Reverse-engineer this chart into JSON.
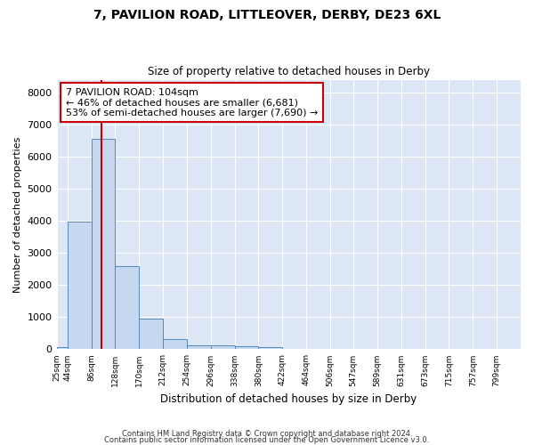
{
  "title": "7, PAVILION ROAD, LITTLEOVER, DERBY, DE23 6XL",
  "subtitle": "Size of property relative to detached houses in Derby",
  "xlabel": "Distribution of detached houses by size in Derby",
  "ylabel": "Number of detached properties",
  "footer_line1": "Contains HM Land Registry data © Crown copyright and database right 2024.",
  "footer_line2": "Contains public sector information licensed under the Open Government Licence v3.0.",
  "bar_color": "#c5d8f0",
  "bar_edge_color": "#5588bb",
  "background_color": "#dce6f5",
  "grid_color": "#ffffff",
  "annotation_text_line1": "7 PAVILION ROAD: 104sqm",
  "annotation_text_line2": "← 46% of detached houses are smaller (6,681)",
  "annotation_text_line3": "53% of semi-detached houses are larger (7,690) →",
  "vline_x": 104,
  "vline_color": "#cc0000",
  "annotation_box_color": "#cc0000",
  "bin_edges": [
    25,
    44,
    86,
    128,
    170,
    212,
    254,
    296,
    338,
    380,
    422,
    464,
    506,
    547,
    589,
    631,
    673,
    715,
    757,
    799,
    841
  ],
  "bin_heights": [
    65,
    3980,
    6560,
    2600,
    950,
    310,
    130,
    120,
    90,
    80,
    0,
    0,
    0,
    0,
    0,
    0,
    0,
    0,
    0,
    0
  ],
  "ylim": [
    0,
    8400
  ],
  "yticks": [
    0,
    1000,
    2000,
    3000,
    4000,
    5000,
    6000,
    7000,
    8000
  ]
}
